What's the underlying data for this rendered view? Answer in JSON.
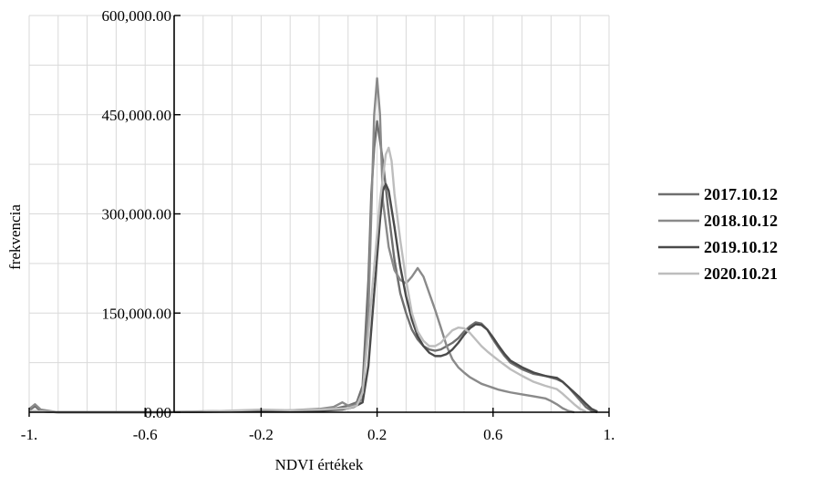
{
  "chart_data": {
    "type": "line",
    "xlabel": "NDVI értékek",
    "ylabel": "frekvencia",
    "xlim": [
      -1,
      1
    ],
    "ylim": [
      0,
      600000
    ],
    "x_ticks": [
      -1,
      -0.6,
      -0.2,
      0.2,
      0.6,
      1
    ],
    "x_tick_labels": [
      "-1.",
      "-0.6",
      "-0.2",
      "0.2",
      "0.6",
      "1."
    ],
    "y_ticks": [
      0,
      150000,
      300000,
      450000,
      600000
    ],
    "y_tick_labels": [
      "0.00",
      "150,000.00",
      "300,000.00",
      "450,000.00",
      "600,000.00"
    ],
    "grid": true,
    "legend_position": "right",
    "series": [
      {
        "name": "2017.10.12",
        "color": "#6f6f6f",
        "points": [
          [
            -1,
            3000
          ],
          [
            -0.98,
            9000
          ],
          [
            -0.96,
            2000
          ],
          [
            -0.9,
            0
          ],
          [
            -0.6,
            0
          ],
          [
            -0.3,
            2000
          ],
          [
            -0.2,
            1000
          ],
          [
            0.0,
            3000
          ],
          [
            0.05,
            5000
          ],
          [
            0.1,
            10000
          ],
          [
            0.13,
            15000
          ],
          [
            0.15,
            40000
          ],
          [
            0.17,
            200000
          ],
          [
            0.18,
            330000
          ],
          [
            0.19,
            400000
          ],
          [
            0.2,
            440000
          ],
          [
            0.22,
            380000
          ],
          [
            0.24,
            300000
          ],
          [
            0.26,
            230000
          ],
          [
            0.28,
            180000
          ],
          [
            0.3,
            150000
          ],
          [
            0.32,
            125000
          ],
          [
            0.34,
            110000
          ],
          [
            0.36,
            100000
          ],
          [
            0.38,
            95000
          ],
          [
            0.4,
            93000
          ],
          [
            0.42,
            95000
          ],
          [
            0.44,
            100000
          ],
          [
            0.46,
            105000
          ],
          [
            0.48,
            112000
          ],
          [
            0.5,
            122000
          ],
          [
            0.52,
            130000
          ],
          [
            0.54,
            136000
          ],
          [
            0.56,
            134000
          ],
          [
            0.58,
            125000
          ],
          [
            0.6,
            110000
          ],
          [
            0.62,
            97000
          ],
          [
            0.64,
            85000
          ],
          [
            0.66,
            75000
          ],
          [
            0.7,
            65000
          ],
          [
            0.74,
            58000
          ],
          [
            0.78,
            55000
          ],
          [
            0.82,
            50000
          ],
          [
            0.84,
            46000
          ],
          [
            0.86,
            38000
          ],
          [
            0.88,
            28000
          ],
          [
            0.9,
            18000
          ],
          [
            0.92,
            8000
          ],
          [
            0.94,
            2000
          ],
          [
            0.96,
            0
          ]
        ]
      },
      {
        "name": "2018.10.12",
        "color": "#8a8a8a",
        "points": [
          [
            -1,
            5000
          ],
          [
            -0.98,
            12000
          ],
          [
            -0.96,
            4000
          ],
          [
            -0.9,
            0
          ],
          [
            -0.6,
            0
          ],
          [
            -0.35,
            1000
          ],
          [
            -0.2,
            3000
          ],
          [
            -0.1,
            3000
          ],
          [
            0.0,
            5000
          ],
          [
            0.05,
            8000
          ],
          [
            0.08,
            15000
          ],
          [
            0.1,
            10000
          ],
          [
            0.12,
            10000
          ],
          [
            0.15,
            20000
          ],
          [
            0.17,
            150000
          ],
          [
            0.18,
            300000
          ],
          [
            0.19,
            450000
          ],
          [
            0.2,
            505000
          ],
          [
            0.21,
            450000
          ],
          [
            0.22,
            320000
          ],
          [
            0.24,
            250000
          ],
          [
            0.26,
            215000
          ],
          [
            0.28,
            200000
          ],
          [
            0.3,
            195000
          ],
          [
            0.32,
            205000
          ],
          [
            0.34,
            218000
          ],
          [
            0.36,
            205000
          ],
          [
            0.38,
            180000
          ],
          [
            0.4,
            155000
          ],
          [
            0.42,
            128000
          ],
          [
            0.44,
            100000
          ],
          [
            0.46,
            80000
          ],
          [
            0.48,
            68000
          ],
          [
            0.5,
            60000
          ],
          [
            0.52,
            53000
          ],
          [
            0.54,
            48000
          ],
          [
            0.56,
            43000
          ],
          [
            0.58,
            40000
          ],
          [
            0.6,
            37000
          ],
          [
            0.62,
            34000
          ],
          [
            0.64,
            32000
          ],
          [
            0.66,
            30000
          ],
          [
            0.7,
            27000
          ],
          [
            0.74,
            24000
          ],
          [
            0.78,
            21000
          ],
          [
            0.8,
            17000
          ],
          [
            0.82,
            12000
          ],
          [
            0.84,
            6000
          ],
          [
            0.86,
            2000
          ],
          [
            0.88,
            0
          ]
        ]
      },
      {
        "name": "2019.10.12",
        "color": "#4a4a4a",
        "points": [
          [
            -1,
            2000
          ],
          [
            -0.9,
            0
          ],
          [
            -0.6,
            0
          ],
          [
            -0.3,
            1000
          ],
          [
            0.0,
            2000
          ],
          [
            0.08,
            4000
          ],
          [
            0.12,
            8000
          ],
          [
            0.15,
            15000
          ],
          [
            0.17,
            70000
          ],
          [
            0.19,
            180000
          ],
          [
            0.21,
            290000
          ],
          [
            0.22,
            335000
          ],
          [
            0.23,
            345000
          ],
          [
            0.24,
            335000
          ],
          [
            0.26,
            280000
          ],
          [
            0.28,
            220000
          ],
          [
            0.3,
            175000
          ],
          [
            0.32,
            140000
          ],
          [
            0.34,
            115000
          ],
          [
            0.36,
            100000
          ],
          [
            0.38,
            90000
          ],
          [
            0.4,
            85000
          ],
          [
            0.42,
            85000
          ],
          [
            0.44,
            88000
          ],
          [
            0.46,
            95000
          ],
          [
            0.48,
            105000
          ],
          [
            0.5,
            117000
          ],
          [
            0.52,
            127000
          ],
          [
            0.54,
            133000
          ],
          [
            0.56,
            132000
          ],
          [
            0.58,
            125000
          ],
          [
            0.6,
            113000
          ],
          [
            0.62,
            100000
          ],
          [
            0.64,
            88000
          ],
          [
            0.66,
            78000
          ],
          [
            0.7,
            68000
          ],
          [
            0.74,
            60000
          ],
          [
            0.78,
            55000
          ],
          [
            0.82,
            52000
          ],
          [
            0.84,
            46000
          ],
          [
            0.86,
            38000
          ],
          [
            0.88,
            30000
          ],
          [
            0.9,
            22000
          ],
          [
            0.92,
            13000
          ],
          [
            0.94,
            5000
          ],
          [
            0.96,
            1000
          ]
        ]
      },
      {
        "name": "2020.10.21",
        "color": "#bdbdbd",
        "points": [
          [
            -1,
            2000
          ],
          [
            -0.9,
            0
          ],
          [
            -0.6,
            0
          ],
          [
            -0.4,
            1000
          ],
          [
            -0.2,
            4000
          ],
          [
            -0.1,
            3000
          ],
          [
            0.0,
            4000
          ],
          [
            0.05,
            5000
          ],
          [
            0.1,
            6000
          ],
          [
            0.13,
            10000
          ],
          [
            0.15,
            30000
          ],
          [
            0.17,
            120000
          ],
          [
            0.19,
            220000
          ],
          [
            0.21,
            320000
          ],
          [
            0.23,
            390000
          ],
          [
            0.24,
            400000
          ],
          [
            0.25,
            380000
          ],
          [
            0.26,
            330000
          ],
          [
            0.28,
            260000
          ],
          [
            0.3,
            200000
          ],
          [
            0.32,
            150000
          ],
          [
            0.34,
            122000
          ],
          [
            0.36,
            108000
          ],
          [
            0.38,
            100000
          ],
          [
            0.4,
            100000
          ],
          [
            0.42,
            105000
          ],
          [
            0.44,
            115000
          ],
          [
            0.46,
            124000
          ],
          [
            0.48,
            128000
          ],
          [
            0.5,
            127000
          ],
          [
            0.52,
            120000
          ],
          [
            0.54,
            110000
          ],
          [
            0.56,
            100000
          ],
          [
            0.58,
            92000
          ],
          [
            0.6,
            85000
          ],
          [
            0.62,
            78000
          ],
          [
            0.66,
            65000
          ],
          [
            0.7,
            55000
          ],
          [
            0.74,
            46000
          ],
          [
            0.78,
            40000
          ],
          [
            0.82,
            35000
          ],
          [
            0.84,
            28000
          ],
          [
            0.86,
            20000
          ],
          [
            0.88,
            12000
          ],
          [
            0.9,
            5000
          ],
          [
            0.92,
            1000
          ]
        ]
      }
    ]
  }
}
